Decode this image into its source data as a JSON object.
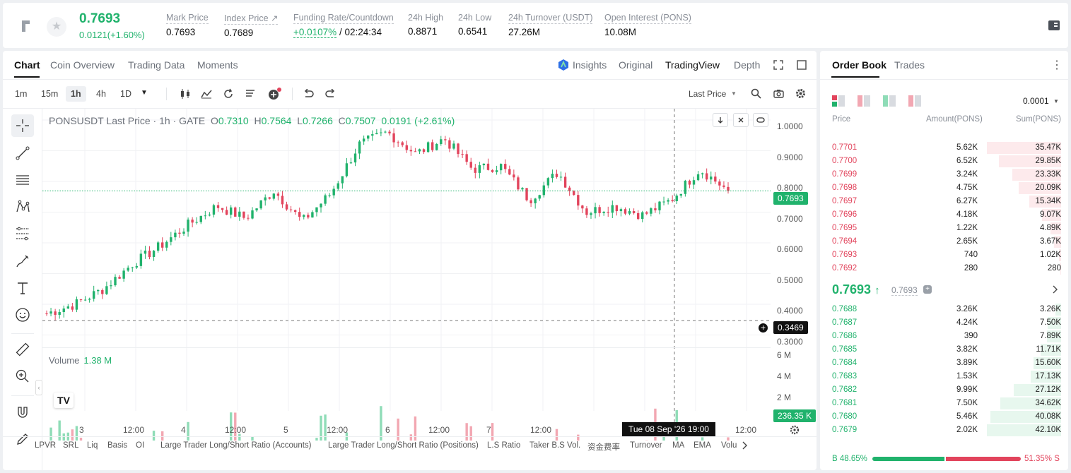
{
  "header": {
    "last_price": "0.7693",
    "change": "0.0121(+1.60%)",
    "stats": [
      {
        "label": "Mark Price",
        "value": "0.7693"
      },
      {
        "label": "Index Price ↗",
        "value": "0.7689"
      },
      {
        "label": "Funding Rate/Countdown",
        "value_up": "+0.0107%",
        "value": "/ 02:24:34"
      },
      {
        "label": "24h High",
        "value": "0.8871"
      },
      {
        "label": "24h Low",
        "value": "0.6541"
      },
      {
        "label": "24h Turnover (USDT)",
        "value": "27.26M"
      },
      {
        "label": "Open Interest (PONS)",
        "value": "10.08M"
      }
    ]
  },
  "chart_panel": {
    "tabs": [
      "Chart",
      "Coin Overview",
      "Trading Data",
      "Moments"
    ],
    "view_tabs": [
      "Insights",
      "Original",
      "TradingView",
      "Depth"
    ],
    "intervals": [
      "1m",
      "15m",
      "1h",
      "4h",
      "1D"
    ],
    "price_type": "Last Price",
    "legend": {
      "symbol": "PONSUSDT Last Price · 1h · GATE",
      "o_k": "O",
      "o": "0.7310",
      "h_k": "H",
      "h": "0.7564",
      "l_k": "L",
      "l": "0.7266",
      "c_k": "C",
      "c": "0.7507",
      "chg": "0.0191 (+2.61%)"
    },
    "volume_label": "Volume",
    "volume_value": "1.38 M",
    "y_labels": [
      "1.0000",
      "0.9000",
      "0.8000",
      "0.7000",
      "0.6000",
      "0.5000",
      "0.4000",
      "0.3000"
    ],
    "vol_labels": [
      "6 M",
      "4 M",
      "2 M"
    ],
    "x_labels": [
      "3",
      "12:00",
      "4",
      "12:00",
      "5",
      "12:00",
      "6",
      "12:00",
      "7",
      "12:00",
      "8",
      "12:00"
    ],
    "cursor_time": "Tue 08 Sep '26   19:00",
    "last_price_tag": "0.7693",
    "cursor_price_tag": "0.3469",
    "volume_tag": "236.35 K",
    "indicators": [
      "LPVR",
      "SRL",
      "Liq",
      "Basis",
      "OI",
      "Large Trader Long/Short Ratio (Accounts)",
      "Large Trader Long/Short Ratio (Positions)",
      "L.S Ratio",
      "Taker B.S Vol.",
      "资金费率",
      "Turnover",
      "MA",
      "EMA",
      "Volu"
    ],
    "colors": {
      "up": "#20b26c",
      "down": "#e2445c",
      "vol_up": "#8fdcb7",
      "vol_down": "#f2a7b2"
    }
  },
  "chart_data": {
    "type": "candlestick",
    "title": "PONSUSDT Last Price · 1h · GATE",
    "ylim": [
      0.28,
      1.03
    ],
    "x_ticks": [
      "3",
      "12:00",
      "4",
      "12:00",
      "5",
      "12:00",
      "6",
      "12:00",
      "7",
      "12:00",
      "8",
      "12:00"
    ],
    "keyframes_close": [
      0.37,
      0.4,
      0.45,
      0.53,
      0.59,
      0.66,
      0.72,
      0.68,
      0.77,
      0.67,
      0.76,
      0.92,
      0.96,
      0.89,
      0.94,
      0.84,
      0.85,
      0.74,
      0.83,
      0.7,
      0.72,
      0.69,
      0.74,
      0.84,
      0.77
    ],
    "grid": true
  },
  "order_book": {
    "tabs": [
      "Order Book",
      "Trades"
    ],
    "precision": "0.0001",
    "headers": [
      "Price",
      "Amount(PONS)",
      "Sum(PONS)"
    ],
    "asks": [
      {
        "price": "0.7701",
        "amount": "5.62K",
        "sum": "35.47K",
        "depth": 1.0
      },
      {
        "price": "0.7700",
        "amount": "6.52K",
        "sum": "29.85K",
        "depth": 0.84
      },
      {
        "price": "0.7699",
        "amount": "3.24K",
        "sum": "23.33K",
        "depth": 0.66
      },
      {
        "price": "0.7698",
        "amount": "4.75K",
        "sum": "20.09K",
        "depth": 0.57
      },
      {
        "price": "0.7697",
        "amount": "6.27K",
        "sum": "15.34K",
        "depth": 0.43
      },
      {
        "price": "0.7696",
        "amount": "4.18K",
        "sum": "9.07K",
        "depth": 0.26
      },
      {
        "price": "0.7695",
        "amount": "1.22K",
        "sum": "4.89K",
        "depth": 0.14
      },
      {
        "price": "0.7694",
        "amount": "2.65K",
        "sum": "3.67K",
        "depth": 0.1
      },
      {
        "price": "0.7693",
        "amount": "740",
        "sum": "1.02K",
        "depth": 0.03
      },
      {
        "price": "0.7692",
        "amount": "280",
        "sum": "280",
        "depth": 0.01
      }
    ],
    "mid_price": "0.7693",
    "mid_arrow": "↑",
    "mid_mark": "0.7693",
    "bids": [
      {
        "price": "0.7688",
        "amount": "3.26K",
        "sum": "3.26K",
        "depth": 0.08
      },
      {
        "price": "0.7687",
        "amount": "4.24K",
        "sum": "7.50K",
        "depth": 0.18
      },
      {
        "price": "0.7686",
        "amount": "390",
        "sum": "7.89K",
        "depth": 0.19
      },
      {
        "price": "0.7685",
        "amount": "3.82K",
        "sum": "11.71K",
        "depth": 0.28
      },
      {
        "price": "0.7684",
        "amount": "3.89K",
        "sum": "15.60K",
        "depth": 0.37
      },
      {
        "price": "0.7683",
        "amount": "1.53K",
        "sum": "17.13K",
        "depth": 0.41
      },
      {
        "price": "0.7682",
        "amount": "9.99K",
        "sum": "27.12K",
        "depth": 0.64
      },
      {
        "price": "0.7681",
        "amount": "7.50K",
        "sum": "34.62K",
        "depth": 0.82
      },
      {
        "price": "0.7680",
        "amount": "5.46K",
        "sum": "40.08K",
        "depth": 0.95
      },
      {
        "price": "0.7679",
        "amount": "2.02K",
        "sum": "42.10K",
        "depth": 1.0
      }
    ],
    "buy_ratio": "B 48.65%",
    "sell_ratio": "51.35% S",
    "buy_fraction": 0.4865
  }
}
